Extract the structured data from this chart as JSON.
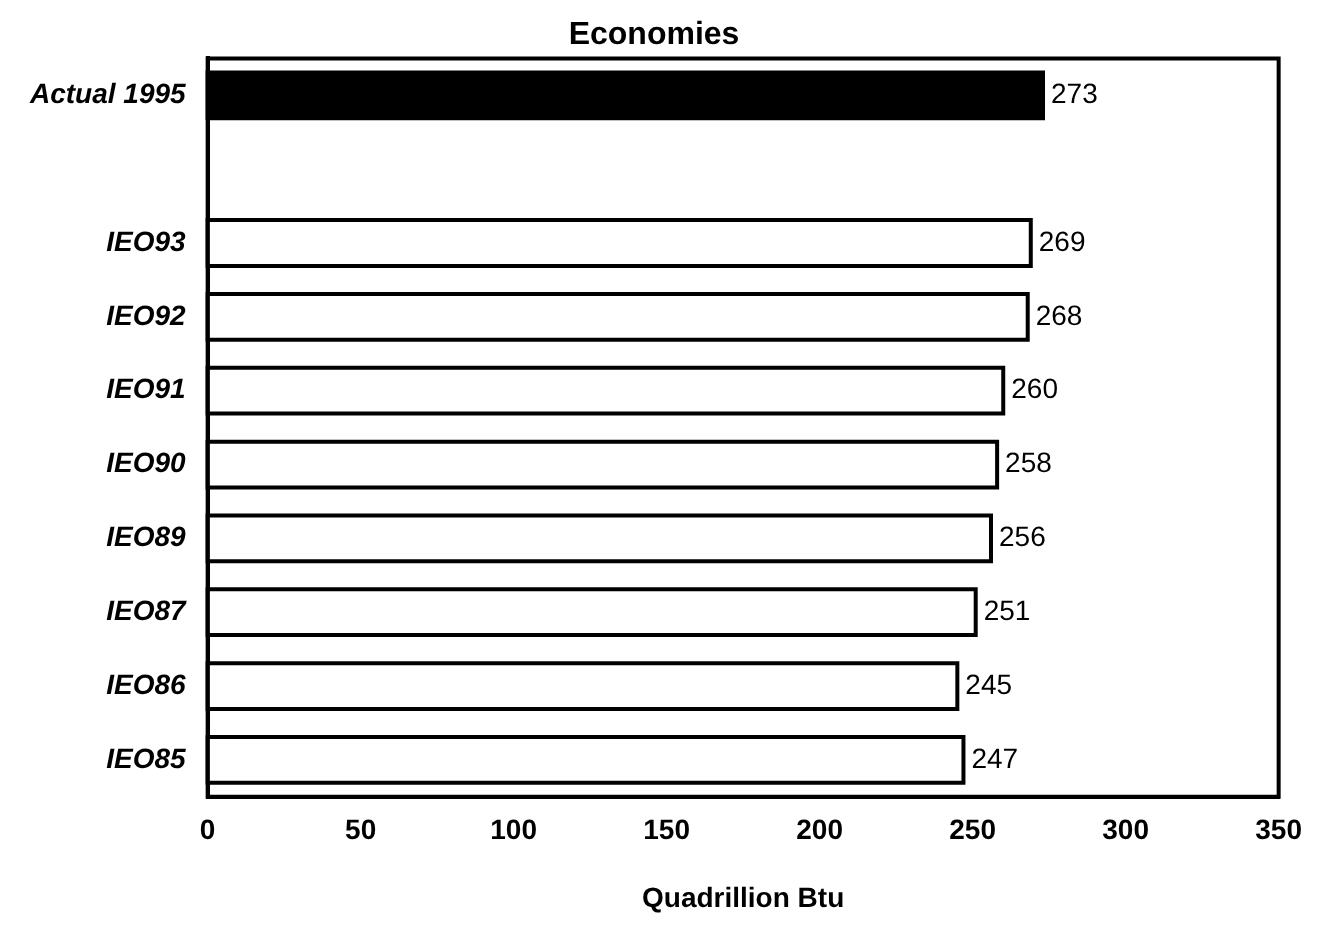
{
  "chart_data": {
    "type": "bar",
    "orientation": "horizontal",
    "title": "Economies",
    "xlabel": "Quadrillion Btu",
    "categories": [
      "Actual 1995",
      null,
      "IEO93",
      "IEO92",
      "IEO91",
      "IEO90",
      "IEO89",
      "IEO87",
      "IEO86",
      "IEO85"
    ],
    "values": [
      273,
      null,
      269,
      268,
      260,
      258,
      256,
      251,
      245,
      247
    ],
    "colors": [
      "#000000",
      null,
      "#ffffff",
      "#ffffff",
      "#ffffff",
      "#ffffff",
      "#ffffff",
      "#ffffff",
      "#ffffff",
      "#ffffff"
    ],
    "xlim": [
      0,
      350
    ],
    "xticks": [
      0,
      50,
      100,
      150,
      200,
      250,
      300,
      350
    ],
    "grid": false,
    "legend": false,
    "data_labels": true
  }
}
